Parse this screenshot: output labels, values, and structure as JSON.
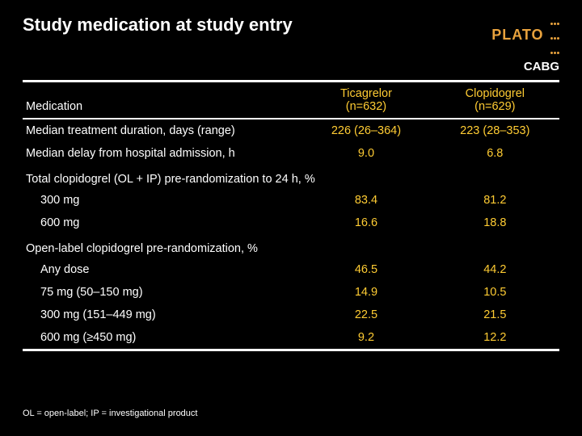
{
  "title": "Study medication at study entry",
  "brand": "PLATO",
  "subtitle": "CABG",
  "columns": {
    "label": "Medication",
    "tic_header_l1": "Ticagrelor",
    "tic_header_l2": "(n=632)",
    "clop_header_l1": "Clopidogrel",
    "clop_header_l2": "(n=629)"
  },
  "rows": {
    "r1_label": "Median treatment duration, days (range)",
    "r1_tic": "226 (26–364)",
    "r1_clop": "223 (28–353)",
    "r2_label": "Median delay from hospital admission, h",
    "r2_tic": "9.0",
    "r2_clop": "6.8",
    "sec1": "Total clopidogrel (OL + IP) pre-randomization to 24 h, %",
    "r3_label": "300 mg",
    "r3_tic": "83.4",
    "r3_clop": "81.2",
    "r4_label": "600 mg",
    "r4_tic": "16.6",
    "r4_clop": "18.8",
    "sec2": "Open-label clopidogrel pre-randomization, %",
    "r5_label": "Any dose",
    "r5_tic": "46.5",
    "r5_clop": "44.2",
    "r6_label": "75 mg (50–150 mg)",
    "r6_tic": "14.9",
    "r6_clop": "10.5",
    "r7_label": "300 mg (151–449 mg)",
    "r7_tic": "22.5",
    "r7_clop": "21.5",
    "r8_label": "600 mg (≥450 mg)",
    "r8_tic": "9.2",
    "r8_clop": "12.2"
  },
  "footnote": "OL = open-label; IP = investigational product",
  "colors": {
    "background": "#000000",
    "text": "#ffffff",
    "accent": "#ffcc33",
    "brand": "#e8a23d"
  }
}
